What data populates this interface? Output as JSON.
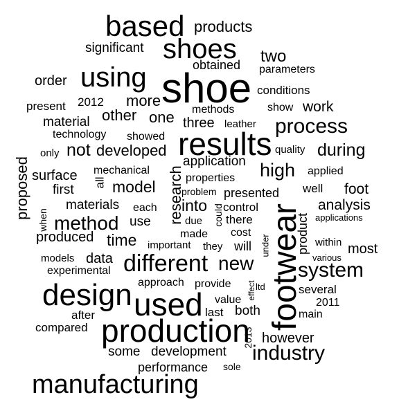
{
  "words": [
    {
      "text": "shoe"
    },
    {
      "text": "footwear"
    },
    {
      "text": "results"
    },
    {
      "text": "production"
    },
    {
      "text": "used"
    },
    {
      "text": "design"
    },
    {
      "text": "manufacturing"
    },
    {
      "text": "based"
    },
    {
      "text": "shoes"
    },
    {
      "text": "using"
    },
    {
      "text": "different"
    },
    {
      "text": "process"
    },
    {
      "text": "system"
    },
    {
      "text": "industry"
    },
    {
      "text": "method"
    },
    {
      "text": "new"
    },
    {
      "text": "products"
    },
    {
      "text": "significant"
    },
    {
      "text": "two"
    },
    {
      "text": "obtained"
    },
    {
      "text": "parameters"
    },
    {
      "text": "order"
    },
    {
      "text": "conditions"
    },
    {
      "text": "more"
    },
    {
      "text": "present"
    },
    {
      "text": "2012"
    },
    {
      "text": "show"
    },
    {
      "text": "work"
    },
    {
      "text": "methods"
    },
    {
      "text": "other"
    },
    {
      "text": "one"
    },
    {
      "text": "material"
    },
    {
      "text": "three"
    },
    {
      "text": "leather"
    },
    {
      "text": "technology"
    },
    {
      "text": "showed"
    },
    {
      "text": "only"
    },
    {
      "text": "not"
    },
    {
      "text": "developed"
    },
    {
      "text": "quality"
    },
    {
      "text": "during"
    },
    {
      "text": "application"
    },
    {
      "text": "mechanical"
    },
    {
      "text": "properties"
    },
    {
      "text": "high"
    },
    {
      "text": "applied"
    },
    {
      "text": "surface"
    },
    {
      "text": "proposed"
    },
    {
      "text": "first"
    },
    {
      "text": "all"
    },
    {
      "text": "model"
    },
    {
      "text": "research"
    },
    {
      "text": "problem"
    },
    {
      "text": "presented"
    },
    {
      "text": "well"
    },
    {
      "text": "foot"
    },
    {
      "text": "materials"
    },
    {
      "text": "each"
    },
    {
      "text": "into"
    },
    {
      "text": "could"
    },
    {
      "text": "control"
    },
    {
      "text": "analysis"
    },
    {
      "text": "when"
    },
    {
      "text": "use"
    },
    {
      "text": "due"
    },
    {
      "text": "there"
    },
    {
      "text": "product"
    },
    {
      "text": "applications"
    },
    {
      "text": "made"
    },
    {
      "text": "cost"
    },
    {
      "text": "produced"
    },
    {
      "text": "time"
    },
    {
      "text": "important"
    },
    {
      "text": "they"
    },
    {
      "text": "will"
    },
    {
      "text": "under"
    },
    {
      "text": "within"
    },
    {
      "text": "most"
    },
    {
      "text": "models"
    },
    {
      "text": "data"
    },
    {
      "text": "various"
    },
    {
      "text": "experimental"
    },
    {
      "text": "approach"
    },
    {
      "text": "provide"
    },
    {
      "text": "effect"
    },
    {
      "text": "ltd"
    },
    {
      "text": "several"
    },
    {
      "text": "value"
    },
    {
      "text": "2011"
    },
    {
      "text": "after"
    },
    {
      "text": "last"
    },
    {
      "text": "both"
    },
    {
      "text": "main"
    },
    {
      "text": "compared"
    },
    {
      "text": "2013"
    },
    {
      "text": "however"
    },
    {
      "text": "some"
    },
    {
      "text": "development"
    },
    {
      "text": "performance"
    },
    {
      "text": "sole"
    }
  ]
}
